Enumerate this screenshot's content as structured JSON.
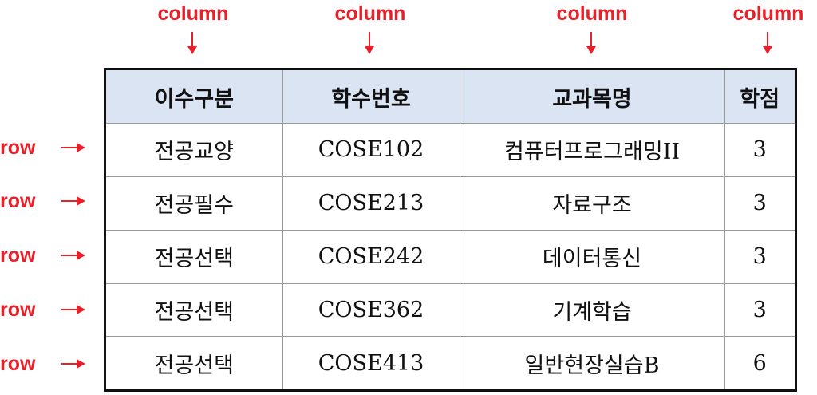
{
  "annotations": {
    "column_label": "column",
    "row_label": "row",
    "accent_color": "#e8202a"
  },
  "table": {
    "header_background": "#dbe4f3",
    "headers": [
      "이수구분",
      "학수번호",
      "교과목명",
      "학점"
    ],
    "rows": [
      [
        "전공교양",
        "COSE102",
        "컴퓨터프로그래밍II",
        "3"
      ],
      [
        "전공필수",
        "COSE213",
        "자료구조",
        "3"
      ],
      [
        "전공선택",
        "COSE242",
        "데이터통신",
        "3"
      ],
      [
        "전공선택",
        "COSE362",
        "기계학습",
        "3"
      ],
      [
        "전공선택",
        "COSE413",
        "일반현장실습B",
        "6"
      ]
    ]
  }
}
